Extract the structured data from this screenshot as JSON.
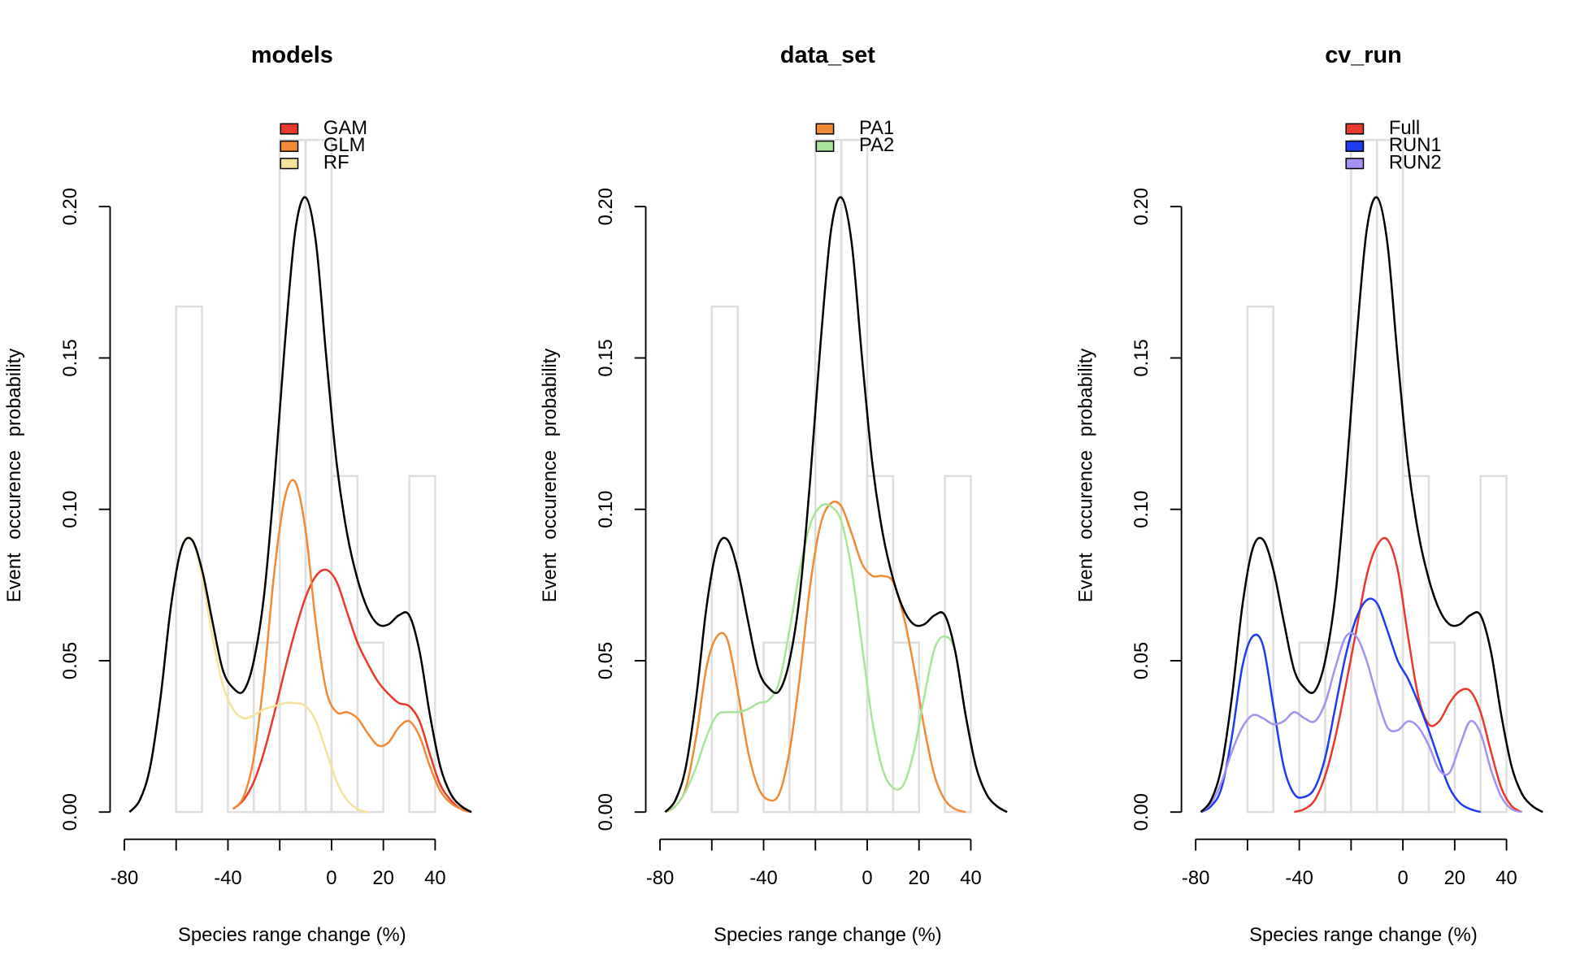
{
  "chart_data": [
    {
      "type": "line",
      "title": "models",
      "xlabel": "Species range change (%)",
      "ylabel": "Event occurence probability",
      "xlim": [
        -85.5,
        55
      ],
      "ylim": [
        -0.009,
        0.225
      ],
      "xticks": [
        -80,
        {
          "value": -60,
          "label": null
        },
        -40,
        {
          "value": -20,
          "label": null
        },
        0,
        20,
        40
      ],
      "yticks": [
        {
          "value": 0,
          "label": "0.00"
        },
        0.05,
        {
          "value": 0.1,
          "label": "0.10"
        },
        0.15,
        {
          "value": 0.2,
          "label": "0.20"
        }
      ],
      "legend": "top",
      "histogram": {
        "color": "#dedede",
        "bins": [
          -60,
          -50,
          -40,
          -30,
          -20,
          -10,
          0,
          10,
          20,
          30,
          40
        ],
        "values": [
          0.167,
          0,
          0.056,
          0.056,
          0.222,
          0.222,
          0.111,
          0.056,
          0,
          0.111
        ]
      },
      "x": [
        -78,
        -74,
        -70,
        -66,
        -62,
        -58,
        -54,
        -50,
        -46,
        -42,
        -38,
        -34,
        -30,
        -26,
        -22,
        -18,
        -14,
        -10,
        -6,
        -2,
        2,
        6,
        10,
        14,
        18,
        22,
        26,
        30,
        34,
        38,
        42,
        46,
        50,
        54
      ],
      "series": [
        {
          "name": "GAM",
          "color": "#e8392b",
          "values": [
            null,
            null,
            null,
            null,
            null,
            null,
            null,
            null,
            null,
            null,
            0.001,
            0.004,
            0.01,
            0.02,
            0.033,
            0.047,
            0.06,
            0.071,
            0.078,
            0.08,
            0.076,
            0.066,
            0.056,
            0.049,
            0.043,
            0.039,
            0.036,
            0.035,
            0.03,
            0.019,
            0.009,
            0.004,
            0.001,
            0
          ]
        },
        {
          "name": "GLM",
          "color": "#f08a35",
          "values": [
            null,
            null,
            null,
            null,
            null,
            null,
            null,
            null,
            null,
            null,
            0.001,
            0.005,
            0.018,
            0.045,
            0.08,
            0.104,
            0.109,
            0.093,
            0.062,
            0.04,
            0.033,
            0.033,
            0.031,
            0.026,
            0.022,
            0.023,
            0.028,
            0.03,
            0.025,
            0.015,
            0.007,
            0.003,
            0.001,
            0
          ]
        },
        {
          "name": "RF",
          "color": "#f5e39a",
          "values": [
            0,
            0.004,
            0.015,
            0.038,
            0.068,
            0.087,
            0.09,
            0.078,
            0.058,
            0.042,
            0.034,
            0.031,
            0.032,
            0.034,
            0.035,
            0.036,
            0.036,
            0.035,
            0.03,
            0.02,
            0.01,
            0.004,
            0.001,
            0,
            null,
            null,
            null,
            null,
            null,
            null,
            null,
            null,
            null,
            null
          ]
        },
        {
          "color": "#000000",
          "values": [
            0,
            0.004,
            0.015,
            0.038,
            0.068,
            0.087,
            0.09,
            0.08,
            0.063,
            0.047,
            0.041,
            0.04,
            0.05,
            0.072,
            0.11,
            0.155,
            0.192,
            0.203,
            0.188,
            0.15,
            0.115,
            0.092,
            0.077,
            0.067,
            0.062,
            0.062,
            0.065,
            0.065,
            0.053,
            0.032,
            0.015,
            0.006,
            0.002,
            0
          ]
        }
      ]
    },
    {
      "type": "line",
      "title": "data_set",
      "xlabel": "Species range change (%)",
      "ylabel": "Event occurence probability",
      "xlim": [
        -85.5,
        55
      ],
      "ylim": [
        -0.009,
        0.225
      ],
      "xticks": [
        -80,
        {
          "value": -60,
          "label": null
        },
        -40,
        {
          "value": -20,
          "label": null
        },
        0,
        20,
        40
      ],
      "yticks": [
        {
          "value": 0,
          "label": "0.00"
        },
        0.05,
        {
          "value": 0.1,
          "label": "0.10"
        },
        0.15,
        {
          "value": 0.2,
          "label": "0.20"
        }
      ],
      "legend": "top",
      "histogram": {
        "color": "#dedede",
        "bins": [
          -60,
          -50,
          -40,
          -30,
          -20,
          -10,
          0,
          10,
          20,
          30,
          40
        ],
        "values": [
          0.167,
          0,
          0.056,
          0.056,
          0.222,
          0.222,
          0.111,
          0.056,
          0,
          0.111
        ]
      },
      "x": [
        -78,
        -74,
        -70,
        -66,
        -62,
        -58,
        -54,
        -50,
        -46,
        -42,
        -38,
        -34,
        -30,
        -26,
        -22,
        -18,
        -14,
        -10,
        -6,
        -2,
        2,
        6,
        10,
        14,
        18,
        22,
        26,
        30,
        34,
        38,
        42,
        46,
        50,
        54
      ],
      "series": [
        {
          "name": "PA1",
          "color": "#f08a35",
          "values": [
            0,
            0.002,
            0.008,
            0.025,
            0.048,
            0.058,
            0.057,
            0.04,
            0.02,
            0.008,
            0.004,
            0.006,
            0.02,
            0.045,
            0.075,
            0.095,
            0.102,
            0.101,
            0.092,
            0.082,
            0.078,
            0.078,
            0.076,
            0.065,
            0.048,
            0.028,
            0.012,
            0.004,
            0.001,
            0,
            null,
            null,
            null,
            null
          ]
        },
        {
          "name": "PA2",
          "color": "#a8e59a",
          "values": [
            0,
            0.002,
            0.007,
            0.015,
            0.025,
            0.032,
            0.033,
            0.033,
            0.034,
            0.036,
            0.037,
            0.043,
            0.06,
            0.08,
            0.095,
            0.101,
            0.101,
            0.096,
            0.08,
            0.055,
            0.03,
            0.014,
            0.008,
            0.009,
            0.02,
            0.038,
            0.054,
            0.058,
            0.053,
            0.032,
            0.015,
            0.006,
            0.002,
            0
          ]
        },
        {
          "color": "#000000",
          "values": [
            0,
            0.004,
            0.015,
            0.038,
            0.068,
            0.087,
            0.09,
            0.08,
            0.063,
            0.047,
            0.041,
            0.04,
            0.05,
            0.072,
            0.11,
            0.155,
            0.192,
            0.203,
            0.188,
            0.15,
            0.115,
            0.092,
            0.077,
            0.067,
            0.062,
            0.062,
            0.065,
            0.065,
            0.053,
            0.032,
            0.015,
            0.006,
            0.002,
            0
          ]
        }
      ]
    },
    {
      "type": "line",
      "title": "cv_run",
      "xlabel": "Species range change (%)",
      "ylabel": "Event occurence probability",
      "xlim": [
        -85.5,
        55
      ],
      "ylim": [
        -0.009,
        0.225
      ],
      "xticks": [
        -80,
        {
          "value": -60,
          "label": null
        },
        -40,
        {
          "value": -20,
          "label": null
        },
        0,
        20,
        40
      ],
      "yticks": [
        {
          "value": 0,
          "label": "0.00"
        },
        0.05,
        {
          "value": 0.1,
          "label": "0.10"
        },
        0.15,
        {
          "value": 0.2,
          "label": "0.20"
        }
      ],
      "legend": "top",
      "histogram": {
        "color": "#dedede",
        "bins": [
          -60,
          -50,
          -40,
          -30,
          -20,
          -10,
          0,
          10,
          20,
          30,
          40
        ],
        "values": [
          0.167,
          0,
          0.056,
          0.056,
          0.222,
          0.222,
          0.111,
          0.056,
          0,
          0.111
        ]
      },
      "x": [
        -78,
        -74,
        -70,
        -66,
        -62,
        -58,
        -54,
        -50,
        -46,
        -42,
        -38,
        -34,
        -30,
        -26,
        -22,
        -18,
        -14,
        -10,
        -6,
        -2,
        2,
        6,
        10,
        14,
        18,
        22,
        26,
        30,
        34,
        38,
        42,
        46,
        50,
        54
      ],
      "series": [
        {
          "name": "Full",
          "color": "#e8392b",
          "values": [
            null,
            null,
            null,
            null,
            null,
            null,
            null,
            null,
            null,
            0,
            0.001,
            0.004,
            0.012,
            0.025,
            0.042,
            0.06,
            0.078,
            0.088,
            0.09,
            0.08,
            0.058,
            0.038,
            0.029,
            0.03,
            0.036,
            0.04,
            0.04,
            0.033,
            0.02,
            0.008,
            0.002,
            0,
            null,
            null
          ]
        },
        {
          "name": "RUN1",
          "color": "#1f3bf0",
          "values": [
            0,
            0.002,
            0.008,
            0.025,
            0.048,
            0.058,
            0.055,
            0.035,
            0.015,
            0.006,
            0.005,
            0.008,
            0.018,
            0.035,
            0.052,
            0.064,
            0.07,
            0.069,
            0.06,
            0.05,
            0.044,
            0.036,
            0.027,
            0.017,
            0.008,
            0.003,
            0.001,
            0,
            null,
            null,
            null,
            null,
            null,
            null
          ]
        },
        {
          "name": "RUN2",
          "color": "#a690f2",
          "values": [
            0,
            0.003,
            0.01,
            0.02,
            0.028,
            0.032,
            0.031,
            0.029,
            0.03,
            0.033,
            0.031,
            0.03,
            0.036,
            0.048,
            0.058,
            0.058,
            0.05,
            0.038,
            0.028,
            0.027,
            0.03,
            0.028,
            0.022,
            0.014,
            0.013,
            0.022,
            0.03,
            0.026,
            0.014,
            0.005,
            0.001,
            0,
            null,
            null
          ]
        },
        {
          "color": "#000000",
          "values": [
            0,
            0.004,
            0.015,
            0.038,
            0.068,
            0.087,
            0.09,
            0.08,
            0.063,
            0.047,
            0.041,
            0.04,
            0.05,
            0.072,
            0.11,
            0.155,
            0.192,
            0.203,
            0.188,
            0.15,
            0.115,
            0.092,
            0.077,
            0.067,
            0.062,
            0.062,
            0.065,
            0.065,
            0.053,
            0.032,
            0.015,
            0.006,
            0.002,
            0
          ]
        }
      ]
    }
  ]
}
